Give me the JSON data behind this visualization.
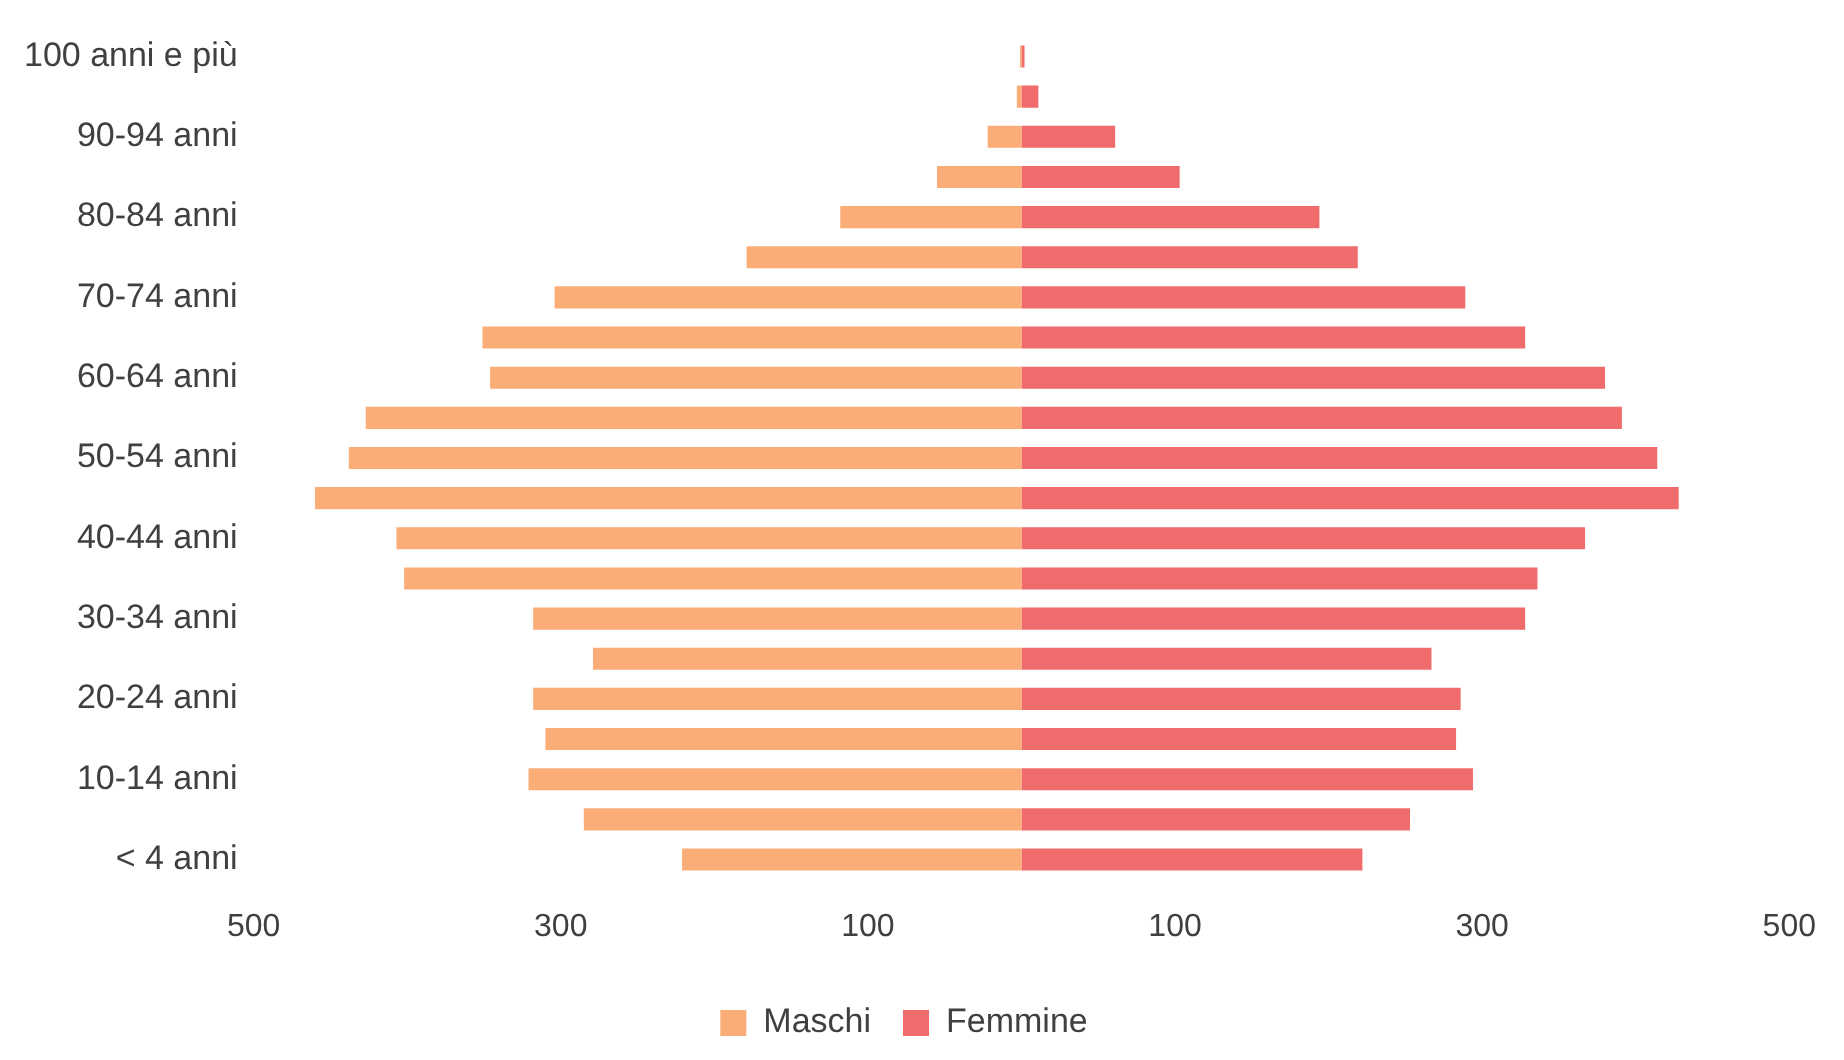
{
  "chart_data": {
    "type": "bar",
    "orientation": "horizontal",
    "stacked": true,
    "categories": [
      "100 anni e più",
      null,
      "90-94 anni",
      null,
      "80-84 anni",
      null,
      "70-74 anni",
      null,
      "60-64 anni",
      null,
      "50-54 anni",
      null,
      "40-44 anni",
      null,
      "30-34 anni",
      null,
      "20-24 anni",
      null,
      "10-14 anni",
      null,
      "< 4 anni"
    ],
    "series": [
      {
        "name": "Maschi",
        "color": "#fbad78",
        "values": [
          -1,
          -3,
          -22,
          -55,
          -118,
          -179,
          -304,
          -351,
          -346,
          -427,
          -438,
          -460,
          -407,
          -402,
          -318,
          -279,
          -318,
          -310,
          -321,
          -285,
          -221
        ]
      },
      {
        "name": "Femmine",
        "color": "#f06b6b",
        "values": [
          2,
          11,
          61,
          103,
          194,
          219,
          289,
          328,
          380,
          391,
          414,
          428,
          367,
          336,
          328,
          267,
          286,
          283,
          294,
          253,
          222
        ]
      }
    ],
    "xlim": [
      -500,
      500
    ],
    "xticks": [
      {
        "value": -500,
        "label": "500"
      },
      {
        "value": -300,
        "label": "300"
      },
      {
        "value": -100,
        "label": "100"
      },
      {
        "value": 100,
        "label": "100"
      },
      {
        "value": 300,
        "label": "300"
      },
      {
        "value": 500,
        "label": "500"
      }
    ],
    "grid": false,
    "legend": "bottom"
  }
}
